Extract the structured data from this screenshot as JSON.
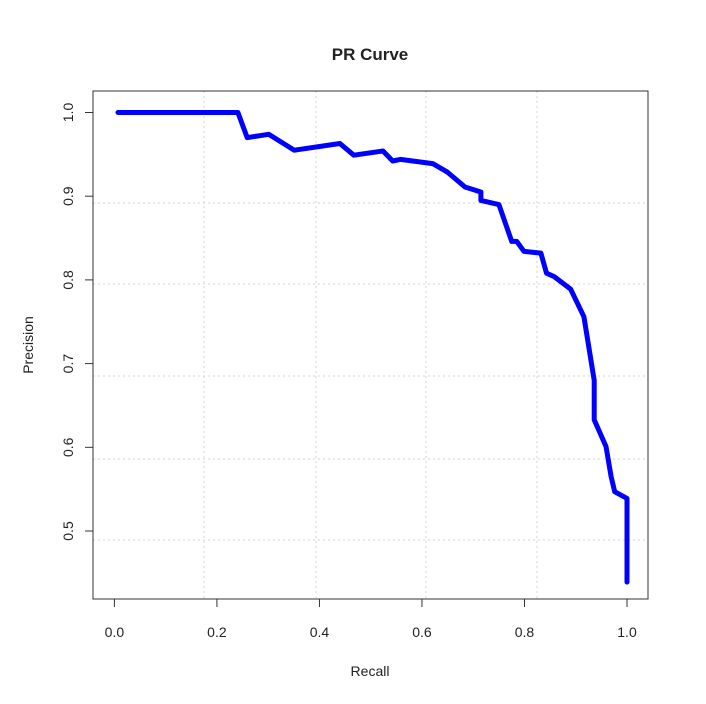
{
  "chart_data": {
    "type": "line",
    "title": "PR Curve",
    "xlabel": "Recall",
    "ylabel": "Precision",
    "xlim": [
      0,
      1
    ],
    "ylim": [
      0.44,
      1.02
    ],
    "xticks": [
      "0.0",
      "0.2",
      "0.4",
      "0.6",
      "0.8",
      "1.0"
    ],
    "yticks": [
      "0.5",
      "0.6",
      "0.7",
      "0.8",
      "0.9",
      "1.0"
    ],
    "grid": true,
    "line_color": "#0000ff",
    "series": [
      {
        "x": [
          0.007,
          0.241,
          0.259,
          0.301,
          0.351,
          0.44,
          0.467,
          0.524,
          0.543,
          0.558,
          0.621,
          0.649,
          0.684,
          0.715,
          0.715,
          0.75,
          0.775,
          0.785,
          0.799,
          0.832,
          0.843,
          0.858,
          0.89,
          0.916,
          0.936,
          0.936,
          0.959,
          0.969,
          0.976,
          1.0,
          1.0
        ],
        "y": [
          1.0,
          1.0,
          0.97,
          0.974,
          0.955,
          0.963,
          0.949,
          0.954,
          0.942,
          0.944,
          0.939,
          0.929,
          0.911,
          0.905,
          0.895,
          0.89,
          0.846,
          0.846,
          0.834,
          0.832,
          0.808,
          0.804,
          0.789,
          0.756,
          0.68,
          0.633,
          0.601,
          0.565,
          0.547,
          0.539,
          0.439
        ]
      }
    ]
  }
}
